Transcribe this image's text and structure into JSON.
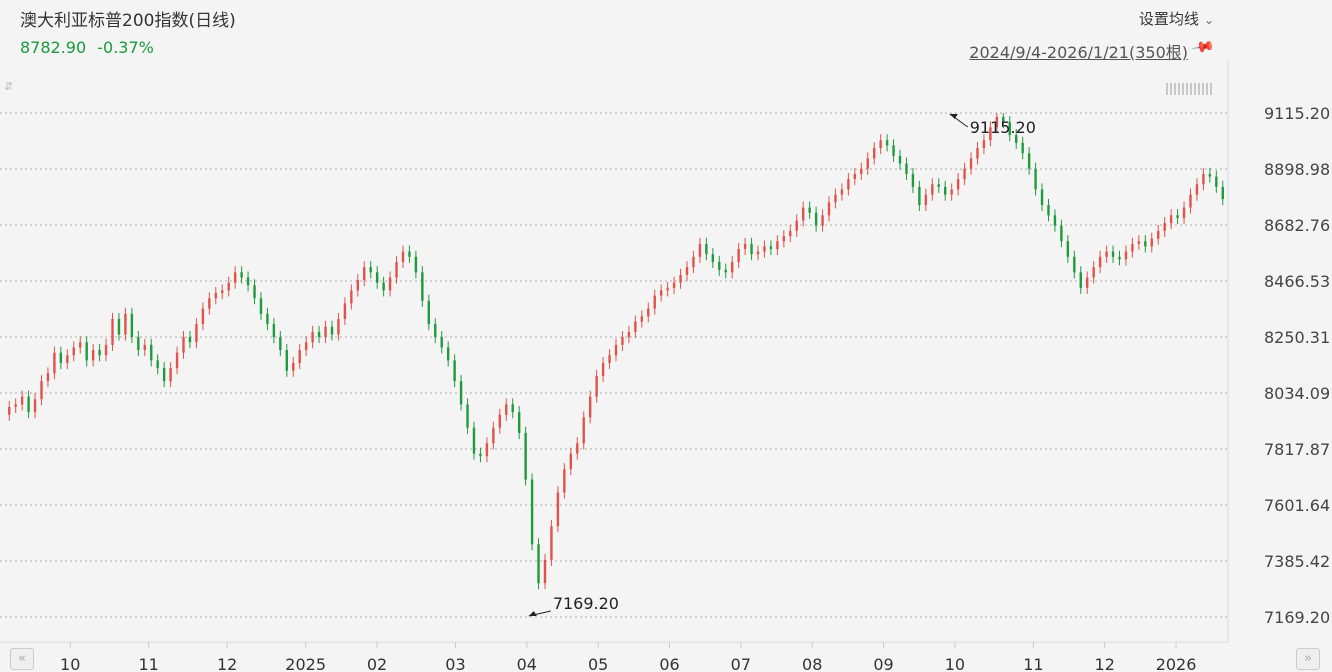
{
  "header": {
    "title": "澳大利亚标普200指数(日线)",
    "price": "8782.90",
    "change": "-0.37%",
    "settings_label": "设置均线",
    "range_label": "2024/9/4-2026/1/21(350根)"
  },
  "colors": {
    "up": "#e0534a",
    "down": "#1f9a3c",
    "price_text": "#1a9a3a",
    "grid": "#aaaaaa",
    "background": "#f4f4f4"
  },
  "icons": {
    "pin": "pin-icon",
    "settings_chevron": "chevron-down-icon",
    "scroll_left": "double-chevron-left-icon",
    "scroll_right": "double-chevron-right-icon"
  },
  "chart_data": {
    "type": "candlestick",
    "title": "澳大利亚标普200指数(日线)",
    "y_ticks": [
      "9115.20",
      "8898.98",
      "8682.76",
      "8466.53",
      "8250.31",
      "8034.09",
      "7817.87",
      "7601.64",
      "7385.42",
      "7169.20"
    ],
    "ylim": [
      7169.2,
      9115.2
    ],
    "x_ticks": [
      "10",
      "11",
      "12",
      "2025",
      "02",
      "03",
      "04",
      "05",
      "06",
      "07",
      "08",
      "09",
      "10",
      "11",
      "12",
      "2026"
    ],
    "x_tick_month_index": [
      0.9,
      2.0,
      3.1,
      4.2,
      5.2,
      6.3,
      7.3,
      8.3,
      9.3,
      10.3,
      11.3,
      12.3,
      13.3,
      14.4,
      15.4,
      16.4
    ],
    "month_span": 17.1,
    "grid": true,
    "annotations": [
      {
        "label": "9115.20",
        "type": "max",
        "month_index": 13.2,
        "value": 9115.2
      },
      {
        "label": "7169.20",
        "type": "min",
        "month_index": 7.3,
        "value": 7169.2
      }
    ],
    "last_close": 8782.9,
    "change_pct": -0.37,
    "bar_count": 350,
    "closes": [
      7980,
      7990,
      8020,
      7960,
      8010,
      8080,
      8110,
      8190,
      8150,
      8180,
      8210,
      8230,
      8160,
      8200,
      8180,
      8220,
      8320,
      8260,
      8340,
      8250,
      8200,
      8220,
      8160,
      8130,
      8080,
      8130,
      8190,
      8250,
      8230,
      8300,
      8360,
      8400,
      8420,
      8430,
      8460,
      8500,
      8480,
      8450,
      8400,
      8340,
      8300,
      8250,
      8200,
      8120,
      8150,
      8200,
      8230,
      8270,
      8250,
      8290,
      8260,
      8320,
      8380,
      8430,
      8470,
      8520,
      8500,
      8460,
      8430,
      8480,
      8540,
      8580,
      8560,
      8500,
      8390,
      8300,
      8250,
      8210,
      8160,
      8080,
      7990,
      7900,
      7800,
      7790,
      7840,
      7900,
      7950,
      7990,
      7960,
      7880,
      7700,
      7450,
      7300,
      7390,
      7520,
      7650,
      7740,
      7800,
      7840,
      7940,
      8020,
      8100,
      8150,
      8180,
      8220,
      8250,
      8270,
      8310,
      8330,
      8360,
      8410,
      8430,
      8440,
      8460,
      8490,
      8520,
      8560,
      8610,
      8570,
      8540,
      8510,
      8500,
      8540,
      8590,
      8610,
      8570,
      8580,
      8600,
      8590,
      8620,
      8640,
      8660,
      8700,
      8750,
      8730,
      8680,
      8720,
      8770,
      8800,
      8820,
      8860,
      8880,
      8900,
      8940,
      8980,
      9010,
      8990,
      8950,
      8920,
      8880,
      8830,
      8760,
      8800,
      8840,
      8830,
      8800,
      8820,
      8860,
      8900,
      8940,
      8980,
      9010,
      9060,
      9100,
      9080,
      9030,
      9000,
      8960,
      8900,
      8820,
      8760,
      8720,
      8680,
      8620,
      8560,
      8500,
      8440,
      8480,
      8520,
      8560,
      8580,
      8560,
      8550,
      8580,
      8610,
      8620,
      8600,
      8630,
      8660,
      8690,
      8720,
      8710,
      8750,
      8800,
      8840,
      8880,
      8870,
      8830,
      8783
    ]
  }
}
